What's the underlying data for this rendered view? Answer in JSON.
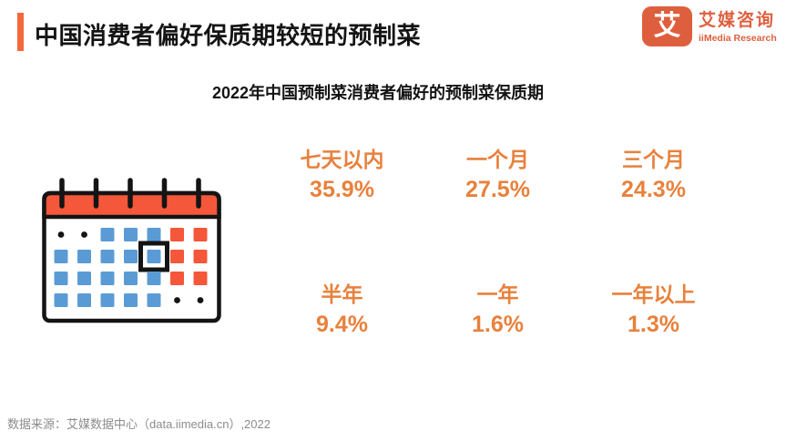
{
  "header": {
    "title": "中国消费者偏好保质期较短的预制菜",
    "logo": {
      "icon_char": "艾",
      "name_cn": "艾媒咨询",
      "name_en": "iiMedia Research"
    }
  },
  "subtitle": "2022年中国预制菜消费者偏好的预制菜保质期",
  "chart_data": {
    "type": "table",
    "layout": "stat-grid-3x2",
    "title": "2022年中国预制菜消费者偏好的预制菜保质期",
    "categories": [
      "七天以内",
      "一个月",
      "三个月",
      "半年",
      "一年",
      "一年以上"
    ],
    "values": [
      35.9,
      27.5,
      24.3,
      9.4,
      1.6,
      1.3
    ],
    "unit": "%"
  },
  "stats": {
    "items": [
      {
        "label": "七天以内",
        "value": "35.9%"
      },
      {
        "label": "一个月",
        "value": "27.5%"
      },
      {
        "label": "三个月",
        "value": "24.3%"
      },
      {
        "label": "半年",
        "value": "9.4%"
      },
      {
        "label": "一年",
        "value": "1.6%"
      },
      {
        "label": "一年以上",
        "value": "1.3%"
      }
    ]
  },
  "calendar_icon": {
    "rows": [
      [
        "dot",
        "dot",
        "blue",
        "blue",
        "blue",
        "red",
        "red"
      ],
      [
        "blue",
        "blue",
        "blue",
        "blue",
        "blue-boxed",
        "red",
        "red"
      ],
      [
        "blue",
        "blue",
        "blue",
        "blue",
        "blue",
        "red",
        "red"
      ],
      [
        "blue",
        "blue",
        "blue",
        "blue",
        "blue",
        "dot",
        "dot"
      ]
    ]
  },
  "footer": {
    "source": "数据来源：艾媒数据中心（data.iimedia.cn）,2022"
  },
  "colors": {
    "accent_orange": "#F4693C",
    "brand_orange": "#DE5F3D",
    "stat_orange": "#E8813C",
    "calendar_red": "#F4573A",
    "calendar_blue": "#5B9BD5",
    "ink": "#141414",
    "source_gray": "#8C8C8C"
  }
}
